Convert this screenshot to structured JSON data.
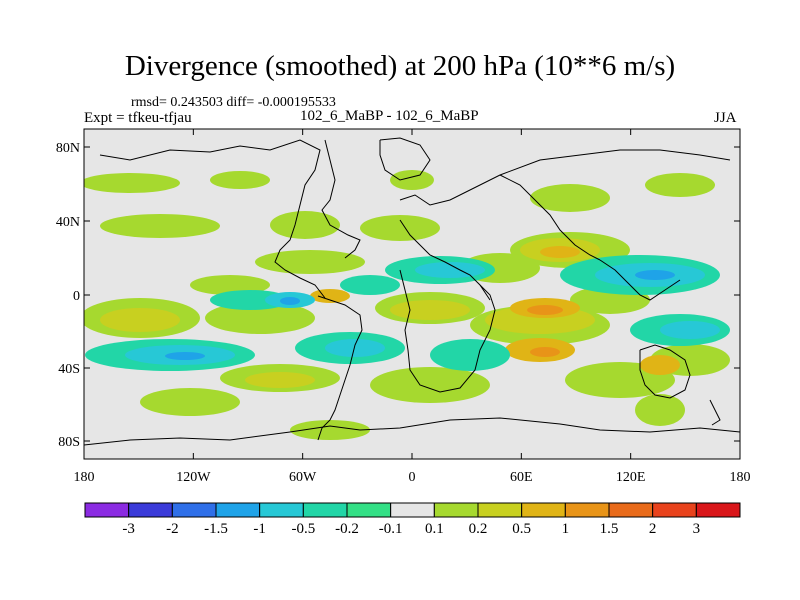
{
  "title": "Divergence (smoothed) at 200 hPa (10**6 m/s)",
  "stats": "rmsd= 0.243503 diff= -0.000195533",
  "expt": "Expt = tfkeu-tfjau",
  "center_label": "102_6_MaBP - 102_6_MaBP",
  "season": "JJA",
  "lat_ticks": [
    "80N",
    "40N",
    "0",
    "40S",
    "80S"
  ],
  "lon_ticks": [
    "180",
    "120W",
    "60W",
    "0",
    "60E",
    "120E",
    "180"
  ],
  "colorbar": {
    "labels": [
      "-3",
      "-2",
      "-1.5",
      "-1",
      "-0.5",
      "-0.2",
      "-0.1",
      "0.1",
      "0.2",
      "0.5",
      "1",
      "1.5",
      "2",
      "3"
    ],
    "colors": [
      "#8b2be2",
      "#3b3bd9",
      "#2f6fe8",
      "#1fa3e8",
      "#27c8d6",
      "#22d6a7",
      "#33e086",
      "#e6e6e6",
      "#a6d92f",
      "#c8d020",
      "#e0b416",
      "#e89418",
      "#e86a1a",
      "#e8421c",
      "#d9161a"
    ]
  },
  "colors": {
    "background": "#e6e6e6",
    "outline": "#000000"
  }
}
